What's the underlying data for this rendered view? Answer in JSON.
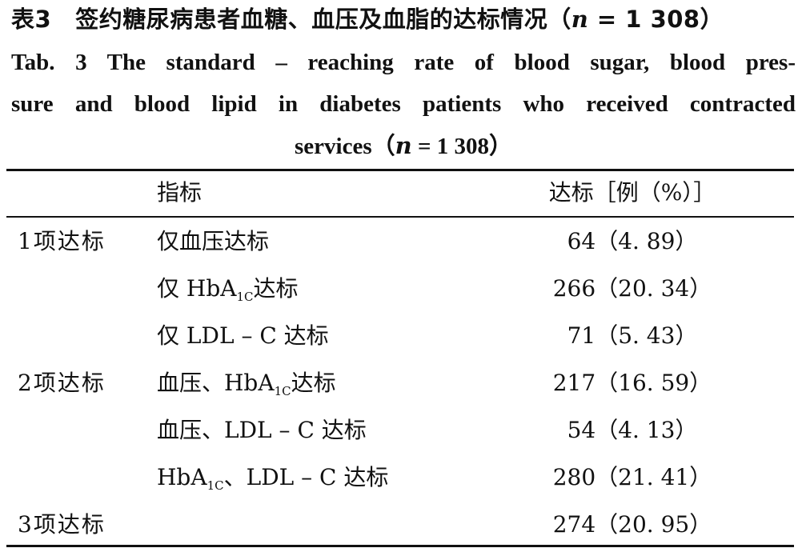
{
  "caption": {
    "cn_table_no": "表3",
    "cn_title_main": "签约糖尿病患者血糖、血压及血脂的达标情况（",
    "cn_n_symbol": "n",
    "cn_n_value": " = 1 308）",
    "en_line1": "Tab. 3   The standard – reaching rate of blood sugar, blood pres-",
    "en_line2": "sure and blood lipid in diabetes patients who received contracted",
    "en_line3_main": "services（",
    "en_n_symbol": "n",
    "en_line3_tail": " = 1  308）"
  },
  "table": {
    "header": {
      "group": "",
      "item": "指标",
      "value": "达标［例（%）］"
    },
    "rows": [
      {
        "group": "1项达标",
        "item": {
          "pre": "仅血压达标",
          "sub": "",
          "post": ""
        },
        "value": "64（4. 89）"
      },
      {
        "group": "",
        "item": {
          "pre": "仅 HbA",
          "sub": "1C",
          "post": "达标"
        },
        "value": "266（20. 34）"
      },
      {
        "group": "",
        "item": {
          "pre": "仅 LDL – C 达标",
          "sub": "",
          "post": ""
        },
        "value": "71（5. 43）"
      },
      {
        "group": "2项达标",
        "item": {
          "pre": "血压、HbA",
          "sub": "1C",
          "post": "达标"
        },
        "value": "217（16. 59）"
      },
      {
        "group": "",
        "item": {
          "pre": "血压、LDL – C 达标",
          "sub": "",
          "post": ""
        },
        "value": "54（4. 13）"
      },
      {
        "group": "",
        "item": {
          "pre": "HbA",
          "sub": "1C",
          "post": "、LDL – C 达标"
        },
        "value": "280（21. 41）"
      },
      {
        "group": "3项达标",
        "item": {
          "pre": "",
          "sub": "",
          "post": ""
        },
        "value": "274（20. 95）"
      }
    ]
  }
}
